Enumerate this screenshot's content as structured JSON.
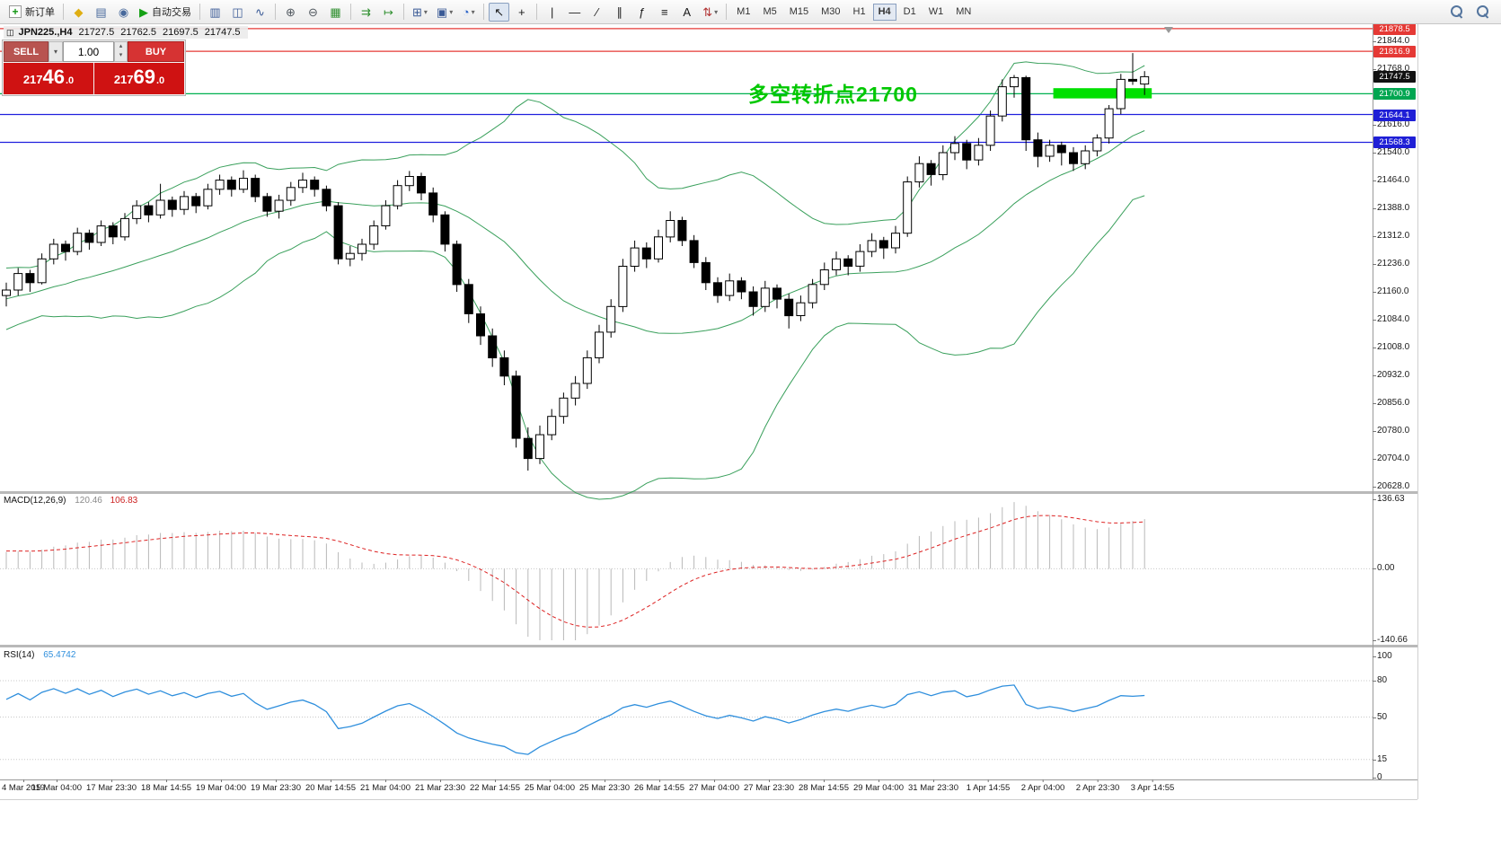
{
  "app": {
    "toolbar_background": "#ebebeb",
    "chart_background": "#ffffff"
  },
  "toolbar": {
    "active_timeframe": "H4",
    "items": [
      {
        "type": "button",
        "name": "new-order-button",
        "glyph": "+",
        "color": "#129612",
        "label": "新订单",
        "boxed": true
      },
      {
        "type": "sep"
      },
      {
        "type": "button",
        "name": "favorites-icon",
        "glyph": "◆",
        "color": "#dfae12"
      },
      {
        "type": "button",
        "name": "market-watch-icon",
        "glyph": "▤",
        "color": "#48699c"
      },
      {
        "type": "button",
        "name": "alerts-icon",
        "glyph": "◉",
        "color": "#48699c"
      },
      {
        "type": "button",
        "name": "autotrading-button",
        "glyph": "▶",
        "color": "#14a014",
        "label": "自动交易"
      },
      {
        "type": "sep"
      },
      {
        "type": "button",
        "name": "bar-chart-icon",
        "glyph": "▥",
        "color": "#3a5a96"
      },
      {
        "type": "button",
        "name": "candlestick-chart-icon",
        "glyph": "◫",
        "color": "#3a5a96"
      },
      {
        "type": "button",
        "name": "line-chart-icon",
        "glyph": "∿",
        "color": "#3a5a96"
      },
      {
        "type": "sep"
      },
      {
        "type": "button",
        "name": "zoom-in-icon",
        "glyph": "⊕",
        "color": "#50575e"
      },
      {
        "type": "button",
        "name": "zoom-out-icon",
        "glyph": "⊖",
        "color": "#50575e"
      },
      {
        "type": "button",
        "name": "tile-windows-icon",
        "glyph": "▦",
        "color": "#2f8f2f"
      },
      {
        "type": "sep"
      },
      {
        "type": "button",
        "name": "auto-scroll-icon",
        "glyph": "⇉",
        "color": "#2f8f2f"
      },
      {
        "type": "button",
        "name": "chart-shift-icon",
        "glyph": "↦",
        "color": "#2f8f2f"
      },
      {
        "type": "sep"
      },
      {
        "type": "button",
        "name": "new-chart-icon",
        "glyph": "⊞",
        "color": "#3a5a96",
        "dropdown": true
      },
      {
        "type": "button",
        "name": "profiles-icon",
        "glyph": "▣",
        "color": "#3a5a96",
        "dropdown": true
      },
      {
        "type": "button",
        "name": "indicators-icon",
        "glyph": "◔",
        "color": "#2a62c8",
        "dropdown": true
      },
      {
        "type": "sep"
      },
      {
        "type": "button",
        "name": "cursor-icon",
        "glyph": "↖",
        "color": "#1a1a1a",
        "active": true
      },
      {
        "type": "button",
        "name": "crosshair-icon",
        "glyph": "+",
        "color": "#1a1a1a"
      },
      {
        "type": "sep"
      },
      {
        "type": "button",
        "name": "vertical-line-icon",
        "glyph": "|",
        "color": "#1a1a1a"
      },
      {
        "type": "button",
        "name": "horizontal-line-icon",
        "glyph": "—",
        "color": "#1a1a1a"
      },
      {
        "type": "button",
        "name": "trendline-icon",
        "glyph": "∕",
        "color": "#1a1a1a"
      },
      {
        "type": "button",
        "name": "channel-icon",
        "glyph": "∥",
        "color": "#1a1a1a"
      },
      {
        "type": "button",
        "name": "fibonacci-icon",
        "glyph": "ƒ",
        "color": "#1a1a1a"
      },
      {
        "type": "button",
        "name": "shapes-icon",
        "glyph": "≡",
        "color": "#1a1a1a"
      },
      {
        "type": "button",
        "name": "text-icon",
        "glyph": "A",
        "color": "#1a1a1a"
      },
      {
        "type": "button",
        "name": "arrows-icon",
        "glyph": "⇅",
        "color": "#b03030",
        "dropdown": true
      },
      {
        "type": "sep"
      },
      {
        "type": "tf",
        "name": "timeframe-m1",
        "label": "M1"
      },
      {
        "type": "tf",
        "name": "timeframe-m5",
        "label": "M5"
      },
      {
        "type": "tf",
        "name": "timeframe-m15",
        "label": "M15"
      },
      {
        "type": "tf",
        "name": "timeframe-m30",
        "label": "M30"
      },
      {
        "type": "tf",
        "name": "timeframe-h1",
        "label": "H1"
      },
      {
        "type": "tf",
        "name": "timeframe-h4",
        "label": "H4",
        "active": true
      },
      {
        "type": "tf",
        "name": "timeframe-d1",
        "label": "D1"
      },
      {
        "type": "tf",
        "name": "timeframe-w1",
        "label": "W1"
      },
      {
        "type": "tf",
        "name": "timeframe-mn",
        "label": "MN"
      },
      {
        "type": "spacer"
      },
      {
        "type": "mag",
        "name": "symbol-search-icon"
      },
      {
        "type": "mag",
        "name": "global-search-icon"
      }
    ]
  },
  "chart_header": {
    "icon_glyph": "◫",
    "symbol_period": "JPN225.,H4",
    "open": "21727.5",
    "high": "21762.5",
    "low": "21697.5",
    "close": "21747.5"
  },
  "one_click": {
    "sell_label": "SELL",
    "buy_label": "BUY",
    "volume": "1.00",
    "sell_price": "21746.0",
    "buy_price": "21769.0",
    "price_color": "#cf1212"
  },
  "chart": {
    "annotation": "多空转折点21700",
    "annotation_color": "#00c800"
  },
  "chart_data": {
    "type": "candlestick",
    "symbol": "JPN225.",
    "timeframe": "H4",
    "pre_closes": [
      21020,
      21050,
      21075,
      21060,
      21095,
      21120,
      21105,
      21140,
      21160,
      21135,
      21155,
      21180,
      21165,
      21195,
      21175,
      21150,
      21170,
      21190,
      21160,
      21175
    ],
    "candles": [
      [
        21150,
        21185,
        21120,
        21165
      ],
      [
        21165,
        21225,
        21150,
        21210
      ],
      [
        21210,
        21220,
        21160,
        21185
      ],
      [
        21185,
        21265,
        21180,
        21250
      ],
      [
        21250,
        21305,
        21235,
        21290
      ],
      [
        21290,
        21300,
        21245,
        21270
      ],
      [
        21270,
        21335,
        21260,
        21320
      ],
      [
        21320,
        21330,
        21275,
        21295
      ],
      [
        21295,
        21355,
        21285,
        21340
      ],
      [
        21340,
        21350,
        21290,
        21310
      ],
      [
        21310,
        21375,
        21300,
        21360
      ],
      [
        21360,
        21410,
        21345,
        21395
      ],
      [
        21395,
        21405,
        21350,
        21370
      ],
      [
        21370,
        21455,
        21360,
        21410
      ],
      [
        21410,
        21420,
        21365,
        21385
      ],
      [
        21385,
        21435,
        21370,
        21420
      ],
      [
        21420,
        21430,
        21375,
        21395
      ],
      [
        21395,
        21455,
        21385,
        21440
      ],
      [
        21440,
        21480,
        21425,
        21465
      ],
      [
        21465,
        21475,
        21420,
        21440
      ],
      [
        21440,
        21492,
        21430,
        21470
      ],
      [
        21470,
        21480,
        21405,
        21420
      ],
      [
        21420,
        21430,
        21365,
        21380
      ],
      [
        21380,
        21425,
        21360,
        21410
      ],
      [
        21410,
        21460,
        21395,
        21445
      ],
      [
        21445,
        21485,
        21430,
        21465
      ],
      [
        21465,
        21475,
        21420,
        21440
      ],
      [
        21440,
        21450,
        21380,
        21395
      ],
      [
        21395,
        21405,
        21235,
        21250
      ],
      [
        21250,
        21285,
        21230,
        21265
      ],
      [
        21265,
        21305,
        21245,
        21290
      ],
      [
        21290,
        21355,
        21275,
        21340
      ],
      [
        21340,
        21410,
        21330,
        21395
      ],
      [
        21395,
        21465,
        21385,
        21450
      ],
      [
        21450,
        21490,
        21435,
        21475
      ],
      [
        21475,
        21485,
        21410,
        21430
      ],
      [
        21430,
        21445,
        21350,
        21370
      ],
      [
        21370,
        21380,
        21270,
        21290
      ],
      [
        21290,
        21300,
        21160,
        21180
      ],
      [
        21180,
        21195,
        21075,
        21100
      ],
      [
        21100,
        21120,
        21015,
        21040
      ],
      [
        21040,
        21060,
        20955,
        20980
      ],
      [
        20980,
        21000,
        20905,
        20930
      ],
      [
        20930,
        20945,
        20735,
        20760
      ],
      [
        20760,
        20790,
        20672,
        20705
      ],
      [
        20705,
        20795,
        20690,
        20770
      ],
      [
        20770,
        20840,
        20755,
        20820
      ],
      [
        20820,
        20885,
        20800,
        20870
      ],
      [
        20870,
        20930,
        20850,
        20910
      ],
      [
        20910,
        21000,
        20895,
        20980
      ],
      [
        20980,
        21070,
        20965,
        21050
      ],
      [
        21050,
        21140,
        21035,
        21120
      ],
      [
        21120,
        21250,
        21105,
        21230
      ],
      [
        21230,
        21300,
        21215,
        21280
      ],
      [
        21280,
        21295,
        21225,
        21250
      ],
      [
        21250,
        21330,
        21240,
        21310
      ],
      [
        21310,
        21380,
        21295,
        21355
      ],
      [
        21355,
        21365,
        21285,
        21300
      ],
      [
        21300,
        21315,
        21225,
        21240
      ],
      [
        21240,
        21255,
        21165,
        21185
      ],
      [
        21185,
        21200,
        21130,
        21150
      ],
      [
        21150,
        21210,
        21135,
        21190
      ],
      [
        21190,
        21200,
        21140,
        21160
      ],
      [
        21160,
        21175,
        21095,
        21120
      ],
      [
        21120,
        21190,
        21105,
        21170
      ],
      [
        21170,
        21180,
        21115,
        21140
      ],
      [
        21140,
        21155,
        21060,
        21095
      ],
      [
        21095,
        21150,
        21080,
        21130
      ],
      [
        21130,
        21195,
        21115,
        21180
      ],
      [
        21180,
        21240,
        21165,
        21220
      ],
      [
        21220,
        21270,
        21205,
        21250
      ],
      [
        21250,
        21260,
        21205,
        21230
      ],
      [
        21230,
        21290,
        21215,
        21270
      ],
      [
        21270,
        21320,
        21255,
        21300
      ],
      [
        21300,
        21310,
        21250,
        21280
      ],
      [
        21280,
        21340,
        21265,
        21320
      ],
      [
        21320,
        21475,
        21310,
        21460
      ],
      [
        21460,
        21530,
        21445,
        21510
      ],
      [
        21510,
        21520,
        21450,
        21480
      ],
      [
        21480,
        21560,
        21465,
        21540
      ],
      [
        21540,
        21585,
        21520,
        21565
      ],
      [
        21565,
        21575,
        21495,
        21520
      ],
      [
        21520,
        21580,
        21505,
        21560
      ],
      [
        21560,
        21655,
        21545,
        21640
      ],
      [
        21640,
        21740,
        21625,
        21720
      ],
      [
        21720,
        21752,
        21690,
        21745
      ],
      [
        21745,
        21750,
        21545,
        21575
      ],
      [
        21575,
        21595,
        21500,
        21530
      ],
      [
        21530,
        21575,
        21515,
        21560
      ],
      [
        21560,
        21570,
        21505,
        21540
      ],
      [
        21540,
        21555,
        21490,
        21510
      ],
      [
        21510,
        21560,
        21495,
        21545
      ],
      [
        21545,
        21590,
        21530,
        21580
      ],
      [
        21580,
        21670,
        21565,
        21660
      ],
      [
        21660,
        21755,
        21645,
        21740
      ],
      [
        21740,
        21812,
        21725,
        21735
      ],
      [
        21727.5,
        21762.5,
        21697.5,
        21747.5
      ]
    ],
    "bollinger": {
      "period": 20,
      "deviation": 2,
      "color": "#3aa05c"
    },
    "h_lines": [
      {
        "price": 21878.5,
        "color": "#e53935",
        "tag_bg": "#e53935"
      },
      {
        "price": 21816.9,
        "color": "#e53935",
        "tag_bg": "#e53935"
      },
      {
        "price": 21700.9,
        "color": "#00b050",
        "tag_bg": "#00a651"
      },
      {
        "price": 21644.1,
        "color": "#2020dd",
        "tag_bg": "#1f1fd6"
      },
      {
        "price": 21568.3,
        "color": "#2020dd",
        "tag_bg": "#1f1fd6"
      }
    ],
    "current_price_tag": {
      "price": 21747.5,
      "bg": "#111111"
    },
    "highlight": {
      "bar_from": 88.3,
      "bar_to": 96.6,
      "price_top": 21716,
      "price_bottom": 21688,
      "color": "#00e000"
    },
    "y_ticks": [
      21844,
      21768,
      21616,
      21540,
      21464,
      21388,
      21312,
      21236,
      21160,
      21084,
      21008,
      20932,
      20856,
      20780,
      20704,
      20628
    ],
    "x_labels": [
      "4 Mar 2019",
      "15 Mar 04:00",
      "17 Mar 23:30",
      "18 Mar 14:55",
      "19 Mar 04:00",
      "19 Mar 23:30",
      "20 Mar 14:55",
      "21 Mar 04:00",
      "21 Mar 23:30",
      "22 Mar 14:55",
      "25 Mar 04:00",
      "25 Mar 23:30",
      "26 Mar 14:55",
      "27 Mar 04:00",
      "27 Mar 23:30",
      "28 Mar 14:55",
      "29 Mar 04:00",
      "31 Mar 23:30",
      "1 Apr 14:55",
      "2 Apr 04:00",
      "2 Apr 23:30",
      "3 Apr 14:55"
    ],
    "indicators": {
      "macd": {
        "name": "MACD(12,26,9)",
        "fast": 12,
        "slow": 26,
        "signal": 9,
        "main_value": "120.46",
        "signal_value": "106.83",
        "scale": [
          136.63,
          0,
          -140.66
        ],
        "histogram_color": "#b8b8b8",
        "signal_color": "#dd2222"
      },
      "rsi": {
        "name": "RSI(14)",
        "period": 14,
        "value": "65.4742",
        "line_color": "#2f8fdd",
        "levels": [
          80,
          50,
          15
        ],
        "scale_labels": [
          100,
          80,
          50,
          15,
          0
        ]
      }
    }
  }
}
